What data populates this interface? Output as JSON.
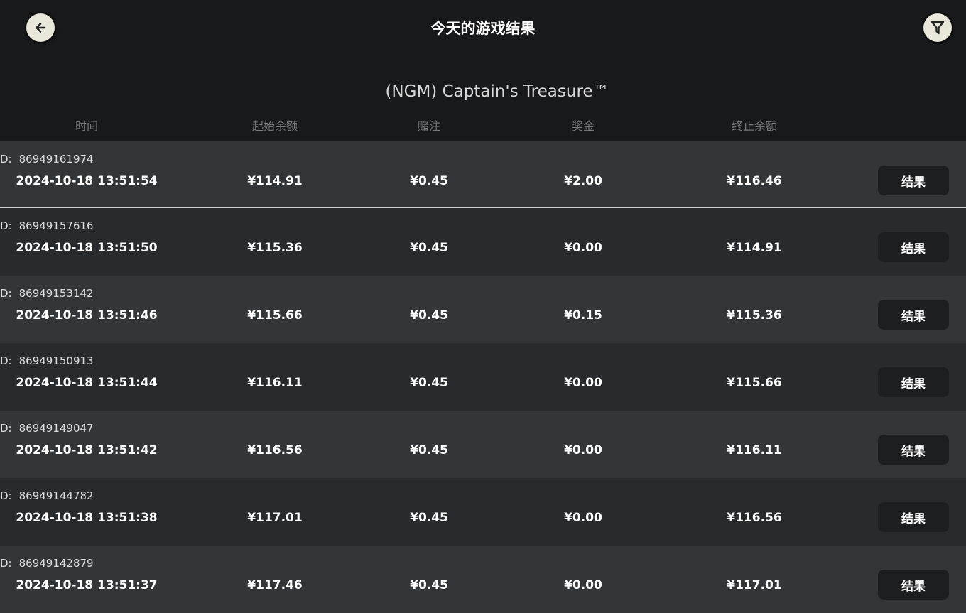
{
  "header": {
    "title": "今天的游戏结果",
    "back_icon": "arrow-left-icon",
    "filter_icon": "filter-icon"
  },
  "game_name": "(NGM) Captain's Treasure™",
  "columns": [
    "时间",
    "起始余额",
    "赌注",
    "奖金",
    "终止余额"
  ],
  "id_label": "D:",
  "result_label": "结果",
  "rows": [
    {
      "id": "86949161974",
      "time": "2024-10-18  13:51:54",
      "start": "¥114.91",
      "bet": "¥0.45",
      "win": "¥2.00",
      "end": "¥116.46"
    },
    {
      "id": "86949157616",
      "time": "2024-10-18  13:51:50",
      "start": "¥115.36",
      "bet": "¥0.45",
      "win": "¥0.00",
      "end": "¥114.91"
    },
    {
      "id": "86949153142",
      "time": "2024-10-18  13:51:46",
      "start": "¥115.66",
      "bet": "¥0.45",
      "win": "¥0.15",
      "end": "¥115.36"
    },
    {
      "id": "86949150913",
      "time": "2024-10-18  13:51:44",
      "start": "¥116.11",
      "bet": "¥0.45",
      "win": "¥0.00",
      "end": "¥115.66"
    },
    {
      "id": "86949149047",
      "time": "2024-10-18  13:51:42",
      "start": "¥116.56",
      "bet": "¥0.45",
      "win": "¥0.00",
      "end": "¥116.11"
    },
    {
      "id": "86949144782",
      "time": "2024-10-18  13:51:38",
      "start": "¥117.01",
      "bet": "¥0.45",
      "win": "¥0.00",
      "end": "¥116.56"
    },
    {
      "id": "86949142879",
      "time": "2024-10-18  13:51:37",
      "start": "¥117.46",
      "bet": "¥0.45",
      "win": "¥0.00",
      "end": "¥117.01"
    }
  ]
}
